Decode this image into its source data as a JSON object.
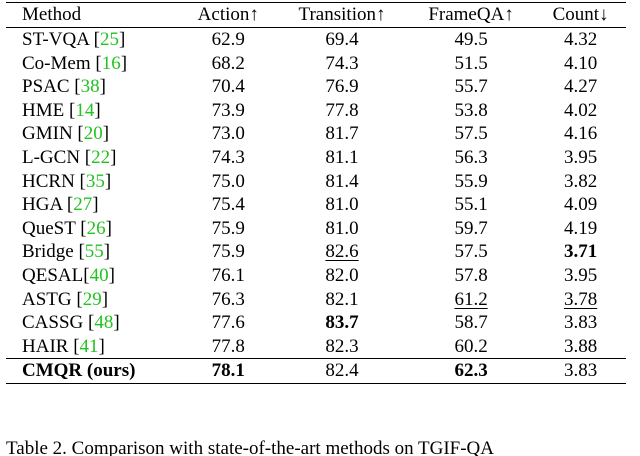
{
  "table": {
    "header": [
      "Method",
      "Action↑",
      "Transition↑",
      "FrameQA↑",
      "Count↓"
    ],
    "rows": [
      [
        {
          "name": "ST-VQA [",
          "ref": "25",
          "close": "]"
        },
        "62.9",
        "69.4",
        "49.5",
        "4.32"
      ],
      [
        {
          "name": "Co-Mem [",
          "ref": "16",
          "close": "]"
        },
        "68.2",
        "74.3",
        "51.5",
        "4.10"
      ],
      [
        {
          "name": "PSAC [",
          "ref": "38",
          "close": "]"
        },
        "70.4",
        "76.9",
        "55.7",
        "4.27"
      ],
      [
        {
          "name": "HME [",
          "ref": "14",
          "close": "]"
        },
        "73.9",
        "77.8",
        "53.8",
        "4.02"
      ],
      [
        {
          "name": "GMIN [",
          "ref": "20",
          "close": "]"
        },
        "73.0",
        "81.7",
        "57.5",
        "4.16"
      ],
      [
        {
          "name": "L-GCN [",
          "ref": "22",
          "close": "]"
        },
        "74.3",
        "81.1",
        "56.3",
        "3.95"
      ],
      [
        {
          "name": "HCRN [",
          "ref": "35",
          "close": "]"
        },
        "75.0",
        "81.4",
        "55.9",
        "3.82"
      ],
      [
        {
          "name": "HGA [",
          "ref": "27",
          "close": "]"
        },
        "75.4",
        "81.0",
        "55.1",
        "4.09"
      ],
      [
        {
          "name": "QueST [",
          "ref": "26",
          "close": "]"
        },
        "75.9",
        "81.0",
        "59.7",
        "4.19"
      ],
      [
        {
          "name": "Bridge [",
          "ref": "55",
          "close": "]"
        },
        "75.9",
        "82.6",
        "57.5",
        "3.71"
      ],
      [
        {
          "name": "QESAL[",
          "ref": "40",
          "close": "]"
        },
        "76.1",
        "82.0",
        "57.8",
        "3.95"
      ],
      [
        {
          "name": "ASTG [",
          "ref": "29",
          "close": "]"
        },
        "76.3",
        "82.1",
        "61.2",
        "3.78"
      ],
      [
        {
          "name": "CASSG [",
          "ref": "48",
          "close": "]"
        },
        "77.6",
        "83.7",
        "58.7",
        "3.83"
      ],
      [
        {
          "name": "HAIR [",
          "ref": "41",
          "close": "]"
        },
        "77.8",
        "82.3",
        "60.2",
        "3.88"
      ],
      [
        {
          "name": "CMQR (ours)"
        },
        "78.1",
        "82.4",
        "62.3",
        "3.83"
      ]
    ]
  },
  "caption": "Table 2. Comparison with state-of-the-art methods on TGIF-QA"
}
